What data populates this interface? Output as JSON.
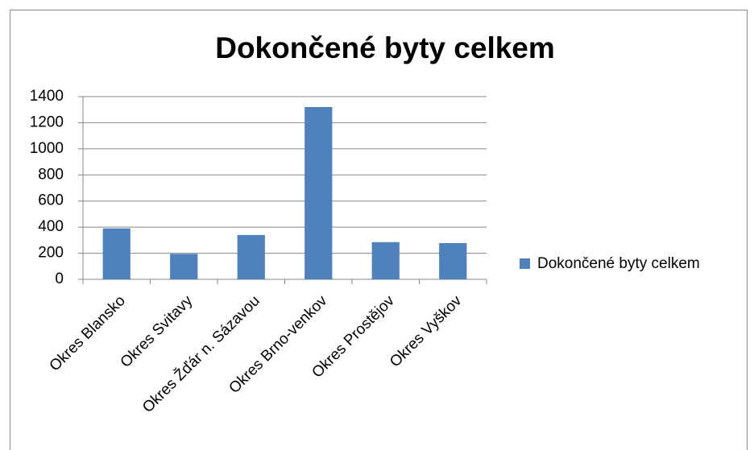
{
  "chart_data": {
    "type": "bar",
    "title": "Dokončené byty celkem",
    "categories": [
      "Okres Blansko",
      "Okres Svitavy",
      "Okres Žďár n. Sázavou",
      "Okres Brno-venkov",
      "Okres Prostějov",
      "Okres Vyškov"
    ],
    "series": [
      {
        "name": "Dokončené byty celkem",
        "color": "#4f81bd",
        "values": [
          390,
          195,
          340,
          1320,
          285,
          278
        ]
      }
    ],
    "ylim": [
      0,
      1400
    ],
    "yticks": [
      0,
      200,
      400,
      600,
      800,
      1000,
      1200,
      1400
    ],
    "grid": true,
    "legend": "right"
  }
}
